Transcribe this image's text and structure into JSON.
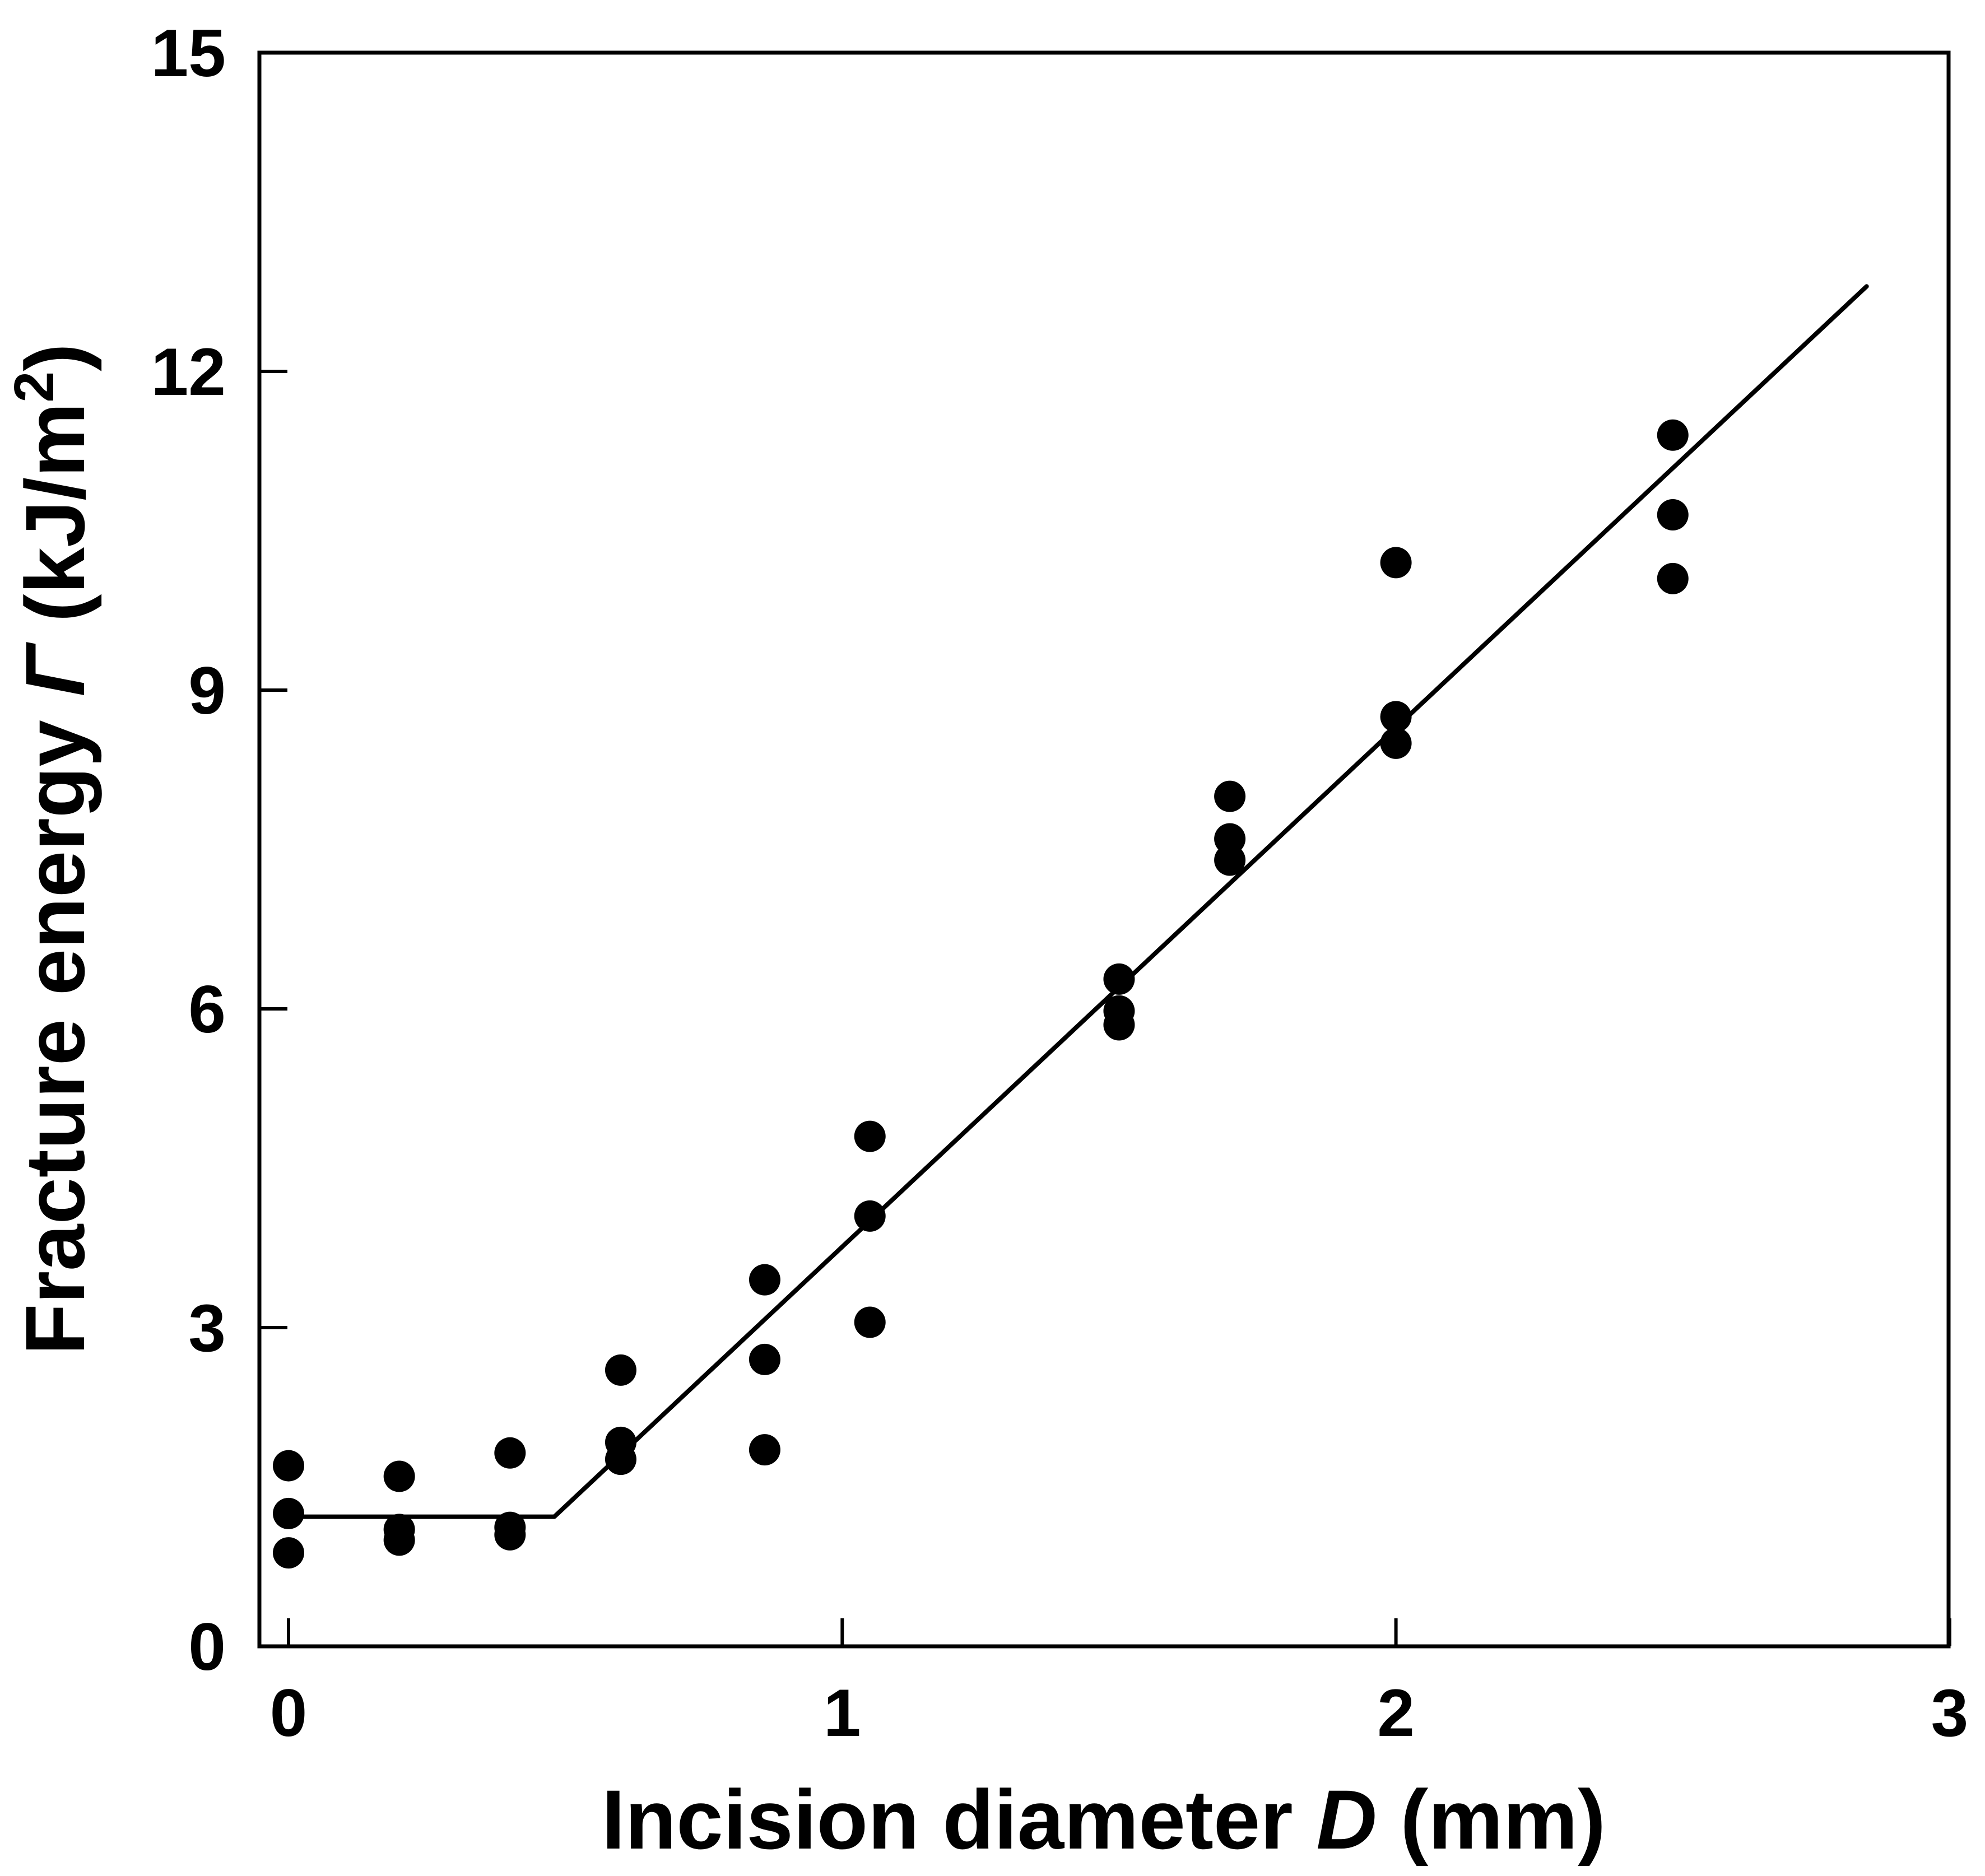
{
  "chart_data": {
    "type": "scatter",
    "xlabel": {
      "prefix": "Incision diameter ",
      "symbol": "D",
      "suffix": " (mm)"
    },
    "ylabel": {
      "prefix": "Fracture energy ",
      "symbol": "Γ",
      "suffix": " (kJ/m",
      "sup": "2",
      "close": ")"
    },
    "xlim": [
      -0.05,
      3
    ],
    "ylim": [
      0,
      15
    ],
    "x_ticks": [
      0,
      1,
      2,
      3
    ],
    "x_tick_labels": [
      "0",
      "1",
      "2",
      "3"
    ],
    "y_ticks": [
      0,
      3,
      6,
      9,
      12,
      15
    ],
    "y_tick_labels": [
      "0",
      "3",
      "6",
      "9",
      "12",
      "15"
    ],
    "grid": false,
    "legend": "none",
    "colors": {
      "points": "#000000",
      "line": "#000000",
      "axes": "#000000"
    },
    "series": [
      {
        "kind": "points",
        "points": [
          {
            "x": 0,
            "y": 1.7
          },
          {
            "x": 0,
            "y": 1.25
          },
          {
            "x": 0,
            "y": 0.88
          },
          {
            "x": 0.2,
            "y": 1.6
          },
          {
            "x": 0.2,
            "y": 1.1
          },
          {
            "x": 0.2,
            "y": 1.0
          },
          {
            "x": 0.4,
            "y": 1.82
          },
          {
            "x": 0.4,
            "y": 1.12
          },
          {
            "x": 0.4,
            "y": 1.05
          },
          {
            "x": 0.6,
            "y": 2.6
          },
          {
            "x": 0.6,
            "y": 1.92
          },
          {
            "x": 0.6,
            "y": 1.76
          },
          {
            "x": 0.86,
            "y": 3.45
          },
          {
            "x": 0.86,
            "y": 2.7
          },
          {
            "x": 0.86,
            "y": 1.85
          },
          {
            "x": 1.05,
            "y": 4.8
          },
          {
            "x": 1.05,
            "y": 4.05
          },
          {
            "x": 1.05,
            "y": 3.05
          },
          {
            "x": 1.5,
            "y": 6.28
          },
          {
            "x": 1.5,
            "y": 5.98
          },
          {
            "x": 1.5,
            "y": 5.85
          },
          {
            "x": 1.7,
            "y": 8.0
          },
          {
            "x": 1.7,
            "y": 7.6
          },
          {
            "x": 1.7,
            "y": 7.4
          },
          {
            "x": 2.0,
            "y": 10.2
          },
          {
            "x": 2.0,
            "y": 8.75
          },
          {
            "x": 2.0,
            "y": 8.5
          },
          {
            "x": 2.5,
            "y": 11.4
          },
          {
            "x": 2.5,
            "y": 10.65
          },
          {
            "x": 2.5,
            "y": 10.05
          }
        ]
      },
      {
        "kind": "fit-line",
        "points": [
          {
            "x": 0,
            "y": 1.22
          },
          {
            "x": 0.48,
            "y": 1.22
          },
          {
            "x": 2.85,
            "y": 12.8
          }
        ]
      }
    ]
  }
}
